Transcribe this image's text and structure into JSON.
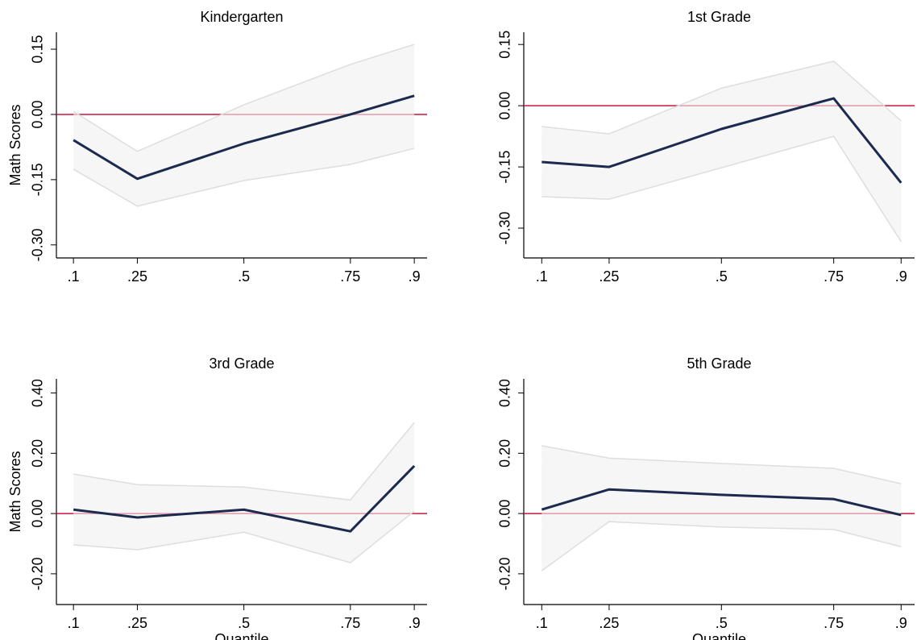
{
  "chart_data": [
    {
      "type": "line",
      "title": "Kindergarten",
      "ylabel": "Math Scores",
      "x": [
        0.1,
        0.25,
        0.5,
        0.75,
        0.9
      ],
      "xticks": [
        {
          "value": 0.1,
          "label": ".1"
        },
        {
          "value": 0.25,
          "label": ".25"
        },
        {
          "value": 0.5,
          "label": ".5"
        },
        {
          "value": 0.75,
          "label": ".75"
        },
        {
          "value": 0.9,
          "label": ".9"
        }
      ],
      "xlim": [
        0.06,
        0.93
      ],
      "ylim": [
        -0.33,
        0.189
      ],
      "yticks": [
        {
          "value": -0.3,
          "label": "-0.30"
        },
        {
          "value": -0.15,
          "label": "-0.15"
        },
        {
          "value": 0,
          "label": "0.00"
        },
        {
          "value": 0.15,
          "label": "0.15"
        }
      ],
      "values": [
        -0.059,
        -0.148,
        -0.067,
        0.0,
        0.043
      ],
      "ci_lower": [
        -0.126,
        -0.211,
        -0.152,
        -0.115,
        -0.078
      ],
      "ci_upper": [
        0.007,
        -0.085,
        0.022,
        0.115,
        0.161
      ],
      "color": "#1b2a4e",
      "ci_color": "#dedede",
      "reference_line": 0,
      "reference_color": "#c8173e"
    },
    {
      "type": "line",
      "title": "1st Grade",
      "x": [
        0.1,
        0.25,
        0.5,
        0.75,
        0.9
      ],
      "xticks": [
        {
          "value": 0.1,
          "label": ".1"
        },
        {
          "value": 0.25,
          "label": ".25"
        },
        {
          "value": 0.5,
          "label": ".5"
        },
        {
          "value": 0.75,
          "label": ".75"
        },
        {
          "value": 0.9,
          "label": ".9"
        }
      ],
      "xlim": [
        0.06,
        0.93
      ],
      "ylim": [
        -0.373,
        0.18
      ],
      "yticks": [
        {
          "value": -0.3,
          "label": "-0.30"
        },
        {
          "value": -0.15,
          "label": "-0.15"
        },
        {
          "value": 0,
          "label": "0.00"
        },
        {
          "value": 0.15,
          "label": "0.15"
        }
      ],
      "values": [
        -0.138,
        -0.15,
        -0.057,
        0.018,
        -0.189
      ],
      "ci_lower": [
        -0.223,
        -0.229,
        -0.152,
        -0.075,
        -0.333
      ],
      "ci_upper": [
        -0.051,
        -0.069,
        0.043,
        0.109,
        -0.037
      ],
      "color": "#1b2a4e",
      "ci_color": "#dedede",
      "reference_line": 0,
      "reference_color": "#c8173e"
    },
    {
      "type": "line",
      "title": "3rd Grade",
      "ylabel": "Math Scores",
      "xlabel": "Quantile",
      "x": [
        0.1,
        0.25,
        0.5,
        0.75,
        0.9
      ],
      "xticks": [
        {
          "value": 0.1,
          "label": ".1"
        },
        {
          "value": 0.25,
          "label": ".25"
        },
        {
          "value": 0.5,
          "label": ".5"
        },
        {
          "value": 0.75,
          "label": ".75"
        },
        {
          "value": 0.9,
          "label": ".9"
        }
      ],
      "xlim": [
        0.06,
        0.93
      ],
      "ylim": [
        -0.302,
        0.447
      ],
      "yticks": [
        {
          "value": -0.2,
          "label": "-0.20"
        },
        {
          "value": 0,
          "label": "0.00"
        },
        {
          "value": 0.2,
          "label": "0.20"
        },
        {
          "value": 0.4,
          "label": "0.40"
        }
      ],
      "values": [
        0.013,
        -0.013,
        0.013,
        -0.059,
        0.158
      ],
      "ci_lower": [
        -0.104,
        -0.12,
        -0.062,
        -0.163,
        0.008
      ],
      "ci_upper": [
        0.131,
        0.096,
        0.088,
        0.045,
        0.302
      ],
      "color": "#1b2a4e",
      "ci_color": "#dedede",
      "reference_line": 0,
      "reference_color": "#c8173e"
    },
    {
      "type": "line",
      "title": "5th Grade",
      "xlabel": "Quantile",
      "x": [
        0.1,
        0.25,
        0.5,
        0.75,
        0.9
      ],
      "xticks": [
        {
          "value": 0.1,
          "label": ".1"
        },
        {
          "value": 0.25,
          "label": ".25"
        },
        {
          "value": 0.5,
          "label": ".5"
        },
        {
          "value": 0.75,
          "label": ".75"
        },
        {
          "value": 0.9,
          "label": ".9"
        }
      ],
      "xlim": [
        0.06,
        0.93
      ],
      "ylim": [
        -0.302,
        0.447
      ],
      "yticks": [
        {
          "value": -0.2,
          "label": "-0.20"
        },
        {
          "value": 0,
          "label": "0.00"
        },
        {
          "value": 0.2,
          "label": "0.20"
        },
        {
          "value": 0.4,
          "label": "0.40"
        }
      ],
      "values": [
        0.013,
        0.08,
        0.062,
        0.048,
        -0.005
      ],
      "ci_lower": [
        -0.19,
        -0.027,
        -0.045,
        -0.053,
        -0.11
      ],
      "ci_upper": [
        0.225,
        0.184,
        0.166,
        0.15,
        0.099
      ],
      "color": "#1b2a4e",
      "ci_color": "#dedede",
      "reference_line": 0,
      "reference_color": "#c8173e"
    }
  ]
}
